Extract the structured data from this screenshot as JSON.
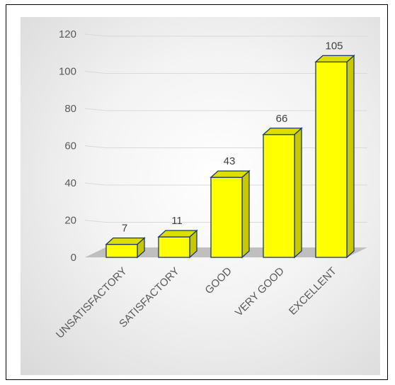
{
  "chart_data": {
    "type": "bar",
    "categories": [
      "UNSATISFACTORY",
      "SATISFACTORY",
      "GOOD",
      "VERY GOOD",
      "EXCELLENT"
    ],
    "values": [
      7,
      11,
      43,
      66,
      105
    ],
    "data_labels": [
      "7",
      "11",
      "43",
      "66",
      "105"
    ],
    "yticks": [
      "0",
      "20",
      "40",
      "60",
      "80",
      "100",
      "120"
    ],
    "ylim": [
      0,
      120
    ],
    "title": "",
    "xlabel": "",
    "ylabel": "",
    "grid": true,
    "legend": "none",
    "colors": {
      "bar": "#ffff00",
      "bar_side": "#c8c800",
      "bar_top": "#dede00",
      "outline": "#1f3864",
      "floor": "#bfbfbf",
      "grid": "#d9d9d9"
    }
  }
}
